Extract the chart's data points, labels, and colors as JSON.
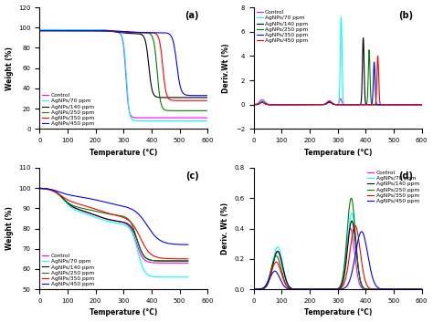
{
  "legend_labels": [
    "Control",
    "AgNPs/70 ppm",
    "AgNPs/140 ppm",
    "AgNPs/250 ppm",
    "AgNPs/350 ppm",
    "AgNPs/450 ppm"
  ],
  "colors": [
    "magenta",
    "cyan",
    "black",
    "green",
    "red",
    "blue"
  ],
  "panel_labels": [
    "(a)",
    "(b)",
    "(c)",
    "(d)"
  ],
  "xlabel": "Temperature (°C)",
  "ylabel_a": "Weight (%)",
  "ylabel_b": "Deriv.Wt (%)",
  "ylabel_c": "Weight (%)",
  "ylabel_d": "Deriv. Wt (%)",
  "xlim": [
    0,
    600
  ],
  "ylim_a": [
    0,
    120
  ],
  "ylim_b": [
    -2,
    8
  ],
  "ylim_c": [
    50,
    110
  ],
  "ylim_d": [
    0.0,
    0.8
  ],
  "xticks": [
    0,
    100,
    200,
    300,
    400,
    500,
    600
  ],
  "yticks_a": [
    0,
    20,
    40,
    60,
    80,
    100,
    120
  ],
  "yticks_b": [
    -2,
    0,
    2,
    4,
    6,
    8
  ],
  "yticks_c": [
    50,
    60,
    70,
    80,
    90,
    100,
    110
  ],
  "yticks_d": [
    0.0,
    0.2,
    0.4,
    0.6,
    0.8
  ]
}
